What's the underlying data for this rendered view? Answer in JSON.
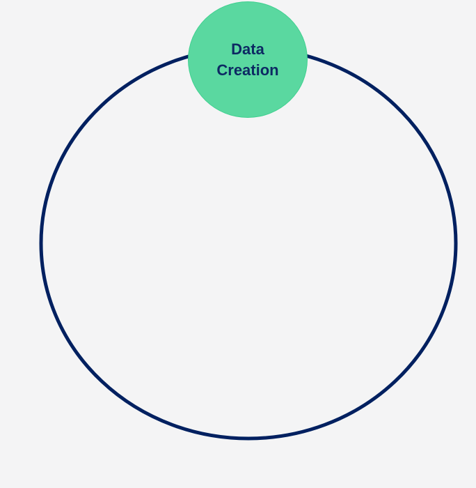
{
  "diagram": {
    "nodes": [
      {
        "label": "Data Creation"
      }
    ]
  },
  "colors": {
    "background": "#f4f4f5",
    "ring": "#002060",
    "node_fill": "#5ad8a0",
    "node_border": "#3fd08f",
    "node_text": "#0d2a63"
  }
}
